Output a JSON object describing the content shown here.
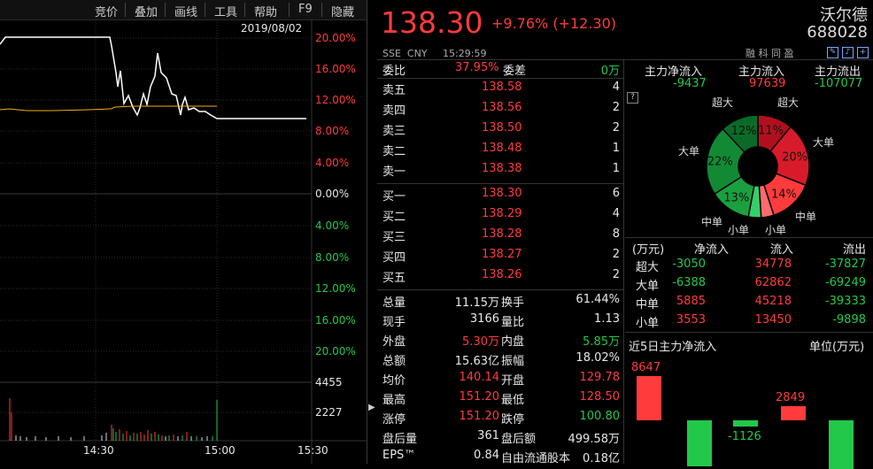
{
  "toolbar": {
    "items": [
      "竞价",
      "叠加",
      "画线",
      "工具",
      "帮助",
      "F9",
      "隐藏"
    ]
  },
  "chart": {
    "date": "2019/08/02",
    "pct_labels_up": [
      "20.00%",
      "16.00%",
      "12.00%",
      "8.00%",
      "4.00%"
    ],
    "zero_label": "0.00%",
    "pct_labels_down": [
      "4.00%",
      "8.00%",
      "12.00%",
      "16.00%",
      "20.00%"
    ],
    "vol_labels": [
      "4455",
      "2227"
    ],
    "time_labels": [
      "14:30",
      "15:00",
      "15:30"
    ]
  },
  "quote": {
    "price": "138.30",
    "change": "+9.76% (+12.30)",
    "name": "沃尔德",
    "code": "688028",
    "exchange": "SSE  CNY",
    "time": "15:29:59",
    "tags": "融 科 同 盈"
  },
  "order_book": {
    "weibi_label": "委比",
    "weibi": "37.95%",
    "weicha_label": "委差",
    "weicha": "0万",
    "asks": [
      {
        "label": "卖五",
        "price": "138.58",
        "vol": "4"
      },
      {
        "label": "卖四",
        "price": "138.56",
        "vol": "2"
      },
      {
        "label": "卖三",
        "price": "138.50",
        "vol": "2"
      },
      {
        "label": "卖二",
        "price": "138.48",
        "vol": "1"
      },
      {
        "label": "卖一",
        "price": "138.38",
        "vol": "1"
      }
    ],
    "bids": [
      {
        "label": "买一",
        "price": "138.30",
        "vol": "6"
      },
      {
        "label": "买二",
        "price": "138.29",
        "vol": "4"
      },
      {
        "label": "买三",
        "price": "138.28",
        "vol": "8"
      },
      {
        "label": "买四",
        "price": "138.27",
        "vol": "2"
      },
      {
        "label": "买五",
        "price": "138.26",
        "vol": "2"
      }
    ]
  },
  "stats": [
    {
      "l1": "总量",
      "v1": "11.15万",
      "c1": "white",
      "l2": "换手",
      "v2": "61.44%",
      "c2": "white"
    },
    {
      "l1": "现手",
      "v1": "3166",
      "c1": "white",
      "l2": "量比",
      "v2": "1.13",
      "c2": "white"
    },
    {
      "l1": "外盘",
      "v1": "5.30万",
      "c1": "red",
      "l2": "内盘",
      "v2": "5.85万",
      "c2": "green"
    },
    {
      "l1": "总额",
      "v1": "15.63亿",
      "c1": "white",
      "l2": "振幅",
      "v2": "18.02%",
      "c2": "white"
    },
    {
      "l1": "均价",
      "v1": "140.14",
      "c1": "red",
      "l2": "开盘",
      "v2": "129.78",
      "c2": "red"
    },
    {
      "l1": "最高",
      "v1": "151.20",
      "c1": "red",
      "l2": "最低",
      "v2": "128.50",
      "c2": "red"
    },
    {
      "l1": "涨停",
      "v1": "151.20",
      "c1": "red",
      "l2": "跌停",
      "v2": "100.80",
      "c2": "green"
    },
    {
      "l1": "盘后量",
      "v1": "361",
      "c1": "white",
      "l2": "盘后额",
      "v2": "499.58万",
      "c2": "white"
    },
    {
      "l1": "EPS™",
      "v1": "0.84",
      "c1": "white",
      "l2": "自由流通股本",
      "v2": "0.18亿",
      "c2": "white"
    }
  ],
  "capital_flow": {
    "headers": [
      "主力净流入",
      "主力流入",
      "主力流出"
    ],
    "values": [
      "-9437",
      "97639",
      "-107077"
    ],
    "help": "?"
  },
  "pie": {
    "labels": {
      "super_big_left": "超大",
      "super_big_right": "超大",
      "big_left": "大单",
      "big_right": "大单",
      "mid_left": "中单",
      "mid_right": "中单",
      "small_left": "小单",
      "small_right": "小单"
    },
    "slices": [
      {
        "pct": "11%",
        "value": 11,
        "color": "#b0101e"
      },
      {
        "pct": "20%",
        "value": 20,
        "color": "#d81b2a"
      },
      {
        "pct": "14%",
        "value": 14,
        "color": "#ff3b3b"
      },
      {
        "pct": "",
        "value": 4,
        "color": "#ff6b6b"
      },
      {
        "pct": "",
        "value": 4,
        "color": "#33d06a"
      },
      {
        "pct": "13%",
        "value": 13,
        "color": "#1aa040"
      },
      {
        "pct": "22%",
        "value": 22,
        "color": "#128a34"
      },
      {
        "pct": "12%",
        "value": 12,
        "color": "#0a6b28"
      }
    ]
  },
  "flow_table": {
    "headers": [
      "(万元)",
      "净流入",
      "流入",
      "流出"
    ],
    "rows": [
      {
        "name": "超大",
        "net": "-3050",
        "in": "34778",
        "out": "-37827"
      },
      {
        "name": "大单",
        "net": "-6388",
        "in": "62862",
        "out": "-69249"
      },
      {
        "name": "中单",
        "net": "5885",
        "in": "45218",
        "out": "-39333"
      },
      {
        "name": "小单",
        "net": "3553",
        "in": "13450",
        "out": "-9898"
      }
    ]
  },
  "five_day": {
    "title": "近5日主力净流入",
    "unit": "单位(万元)",
    "bars": [
      {
        "value": 8647,
        "label": "8647"
      },
      {
        "value": -9000,
        "label": ""
      },
      {
        "value": -1126,
        "label": "-1126"
      },
      {
        "value": 2849,
        "label": "2849"
      },
      {
        "value": -9437,
        "label": ""
      }
    ]
  }
}
